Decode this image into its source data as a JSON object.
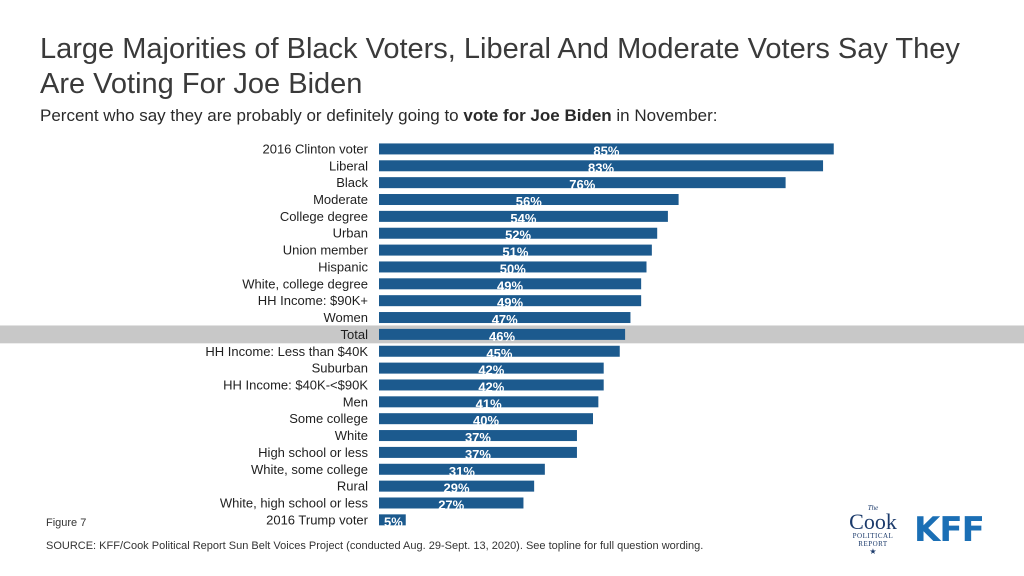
{
  "title": "Large Majorities of Black Voters, Liberal And Moderate Voters Say They Are Voting For Joe Biden",
  "subtitle": {
    "prefix": "Percent who say they are probably or definitely going to ",
    "bold": "vote for Joe Biden",
    "suffix": " in November:"
  },
  "figure_label": "Figure 7",
  "source": "SOURCE: KFF/Cook Political Report Sun Belt Voices Project (conducted Aug. 29-Sept. 13, 2020). See topline for full question wording.",
  "logos": {
    "cook_the": "The",
    "cook_name": "Cook",
    "cook_sub1": "POLITICAL",
    "cook_sub2": "REPORT",
    "cook_star": "★",
    "kff": "KFF"
  },
  "colors": {
    "bar": "#1c5a8e",
    "highlight_band": "#c8c8c8",
    "label_text": "#ffffff"
  },
  "chart_data": {
    "type": "bar",
    "orientation": "horizontal",
    "categories": [
      "2016 Clinton voter",
      "Liberal",
      "Black",
      "Moderate",
      "College degree",
      "Urban",
      "Union member",
      "Hispanic",
      "White, college degree",
      "HH Income: $90K+",
      "Women",
      "Total",
      "HH Income: Less than $40K",
      "Suburban",
      "HH Income: $40K-<$90K",
      "Men",
      "Some college",
      "White",
      "High school or less",
      "White, some college",
      "Rural",
      "White, high school or less",
      "2016 Trump voter"
    ],
    "values": [
      85,
      83,
      76,
      56,
      54,
      52,
      51,
      50,
      49,
      49,
      47,
      46,
      45,
      42,
      42,
      41,
      40,
      37,
      37,
      31,
      29,
      27,
      5
    ],
    "value_labels": [
      "85%",
      "83%",
      "76%",
      "56%",
      "54%",
      "52%",
      "51%",
      "50%",
      "49%",
      "49%",
      "47%",
      "46%",
      "45%",
      "42%",
      "42%",
      "41%",
      "40%",
      "37%",
      "37%",
      "31%",
      "29%",
      "27%",
      "5%"
    ],
    "highlighted_category": "Total",
    "xlim": [
      0,
      100
    ],
    "grid": false,
    "legend": "none"
  }
}
